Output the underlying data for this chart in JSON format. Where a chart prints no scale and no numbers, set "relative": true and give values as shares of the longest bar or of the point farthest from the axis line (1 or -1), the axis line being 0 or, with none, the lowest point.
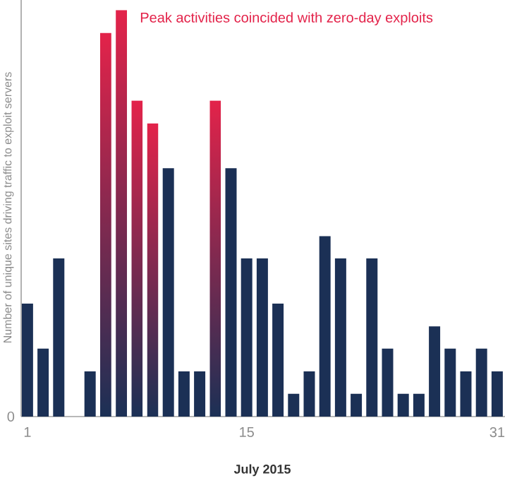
{
  "chart_data": {
    "type": "bar",
    "relative": true,
    "xlabel": "July 2015",
    "ylabel": "Number of unique sites driving traffic to exploit servers",
    "annotations": [
      "Peak activities coincided with zero-day exploits",
      "0"
    ],
    "x": [
      1,
      2,
      3,
      4,
      5,
      6,
      7,
      8,
      9,
      10,
      11,
      12,
      13,
      14,
      15,
      16,
      17,
      18,
      19,
      20,
      21,
      22,
      23,
      24,
      25,
      26,
      27,
      28,
      29,
      30,
      31
    ],
    "values": [
      0.278,
      0.167,
      0.389,
      0,
      0.111,
      0.944,
      1,
      0.778,
      0.722,
      0.611,
      0.111,
      0.111,
      0.778,
      0.611,
      0.389,
      0.389,
      0.278,
      0.056,
      0.111,
      0.444,
      0.389,
      0.056,
      0.389,
      0.167,
      0.056,
      0.056,
      0.222,
      0.167,
      0.111,
      0.167,
      0.111
    ],
    "color": "#1b3055",
    "colors": [
      "#1b3055",
      "#1b3055",
      "#1b3055",
      "#1b3055",
      "#1b3055",
      "#e3234a",
      "#e3234a",
      "#e3234a",
      "#e3234a",
      "#1b3055",
      "#1b3055",
      "#1b3055",
      "#e3234a",
      "#1b3055",
      "#1b3055",
      "#1b3055",
      "#1b3055",
      "#1b3055",
      "#1b3055",
      "#1b3055",
      "#1b3055",
      "#1b3055",
      "#1b3055",
      "#1b3055",
      "#1b3055",
      "#1b3055",
      "#1b3055",
      "#1b3055",
      "#1b3055",
      "#1b3055",
      "#1b3055"
    ],
    "xlim": [
      0.6,
      31.5
    ],
    "xticks": [
      1,
      15,
      31
    ]
  }
}
